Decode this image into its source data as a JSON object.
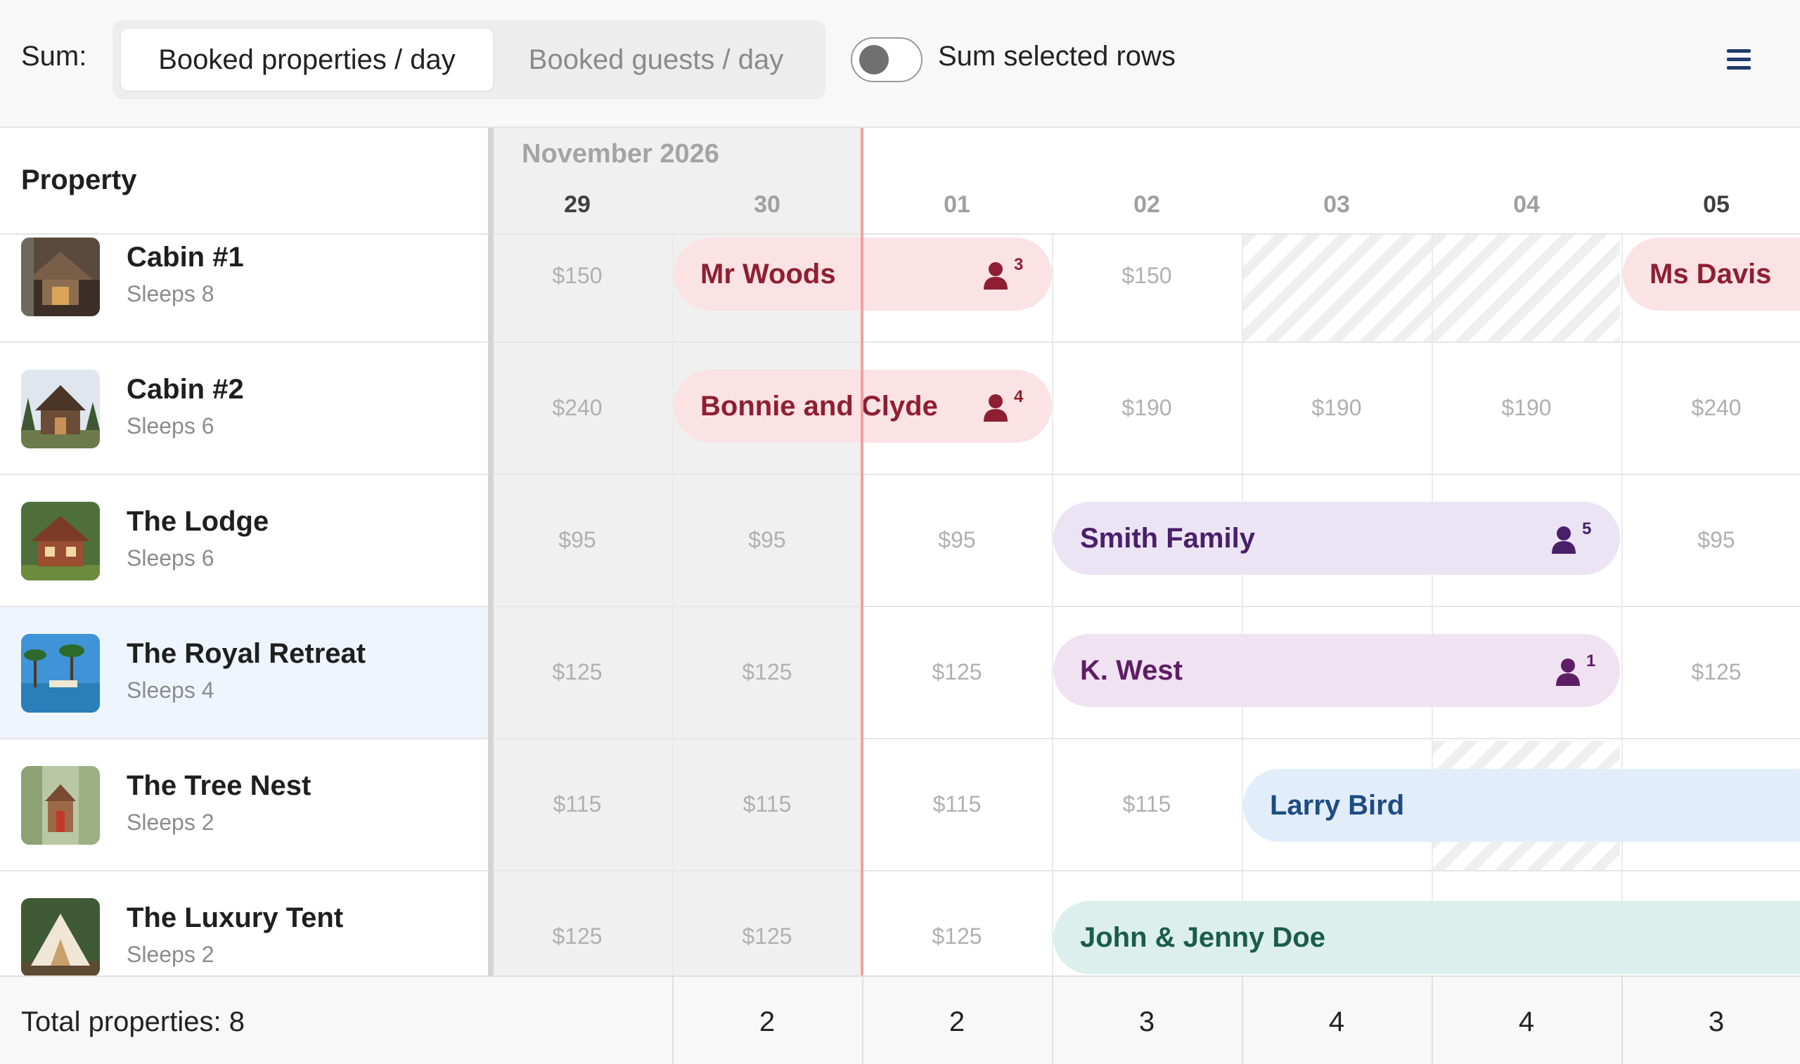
{
  "toolbar": {
    "sum_label": "Sum:",
    "segment_active": "Booked properties / day",
    "segment_inactive": "Booked guests / day",
    "toggle_label": "Sum selected rows",
    "toggle_on": false,
    "menu_icon": "hamburger-menu-icon"
  },
  "header": {
    "property_label": "Property",
    "month": "November 2026",
    "days": [
      "29",
      "30",
      "01",
      "02",
      "03",
      "04",
      "05"
    ]
  },
  "properties": [
    {
      "name": "Cabin #1",
      "sleeps": "Sleeps 8",
      "prices": [
        "$150",
        "",
        "",
        "$150",
        "",
        "",
        ""
      ]
    },
    {
      "name": "Cabin #2",
      "sleeps": "Sleeps 6",
      "prices": [
        "$240",
        "",
        "",
        "$190",
        "$190",
        "$190",
        "$240"
      ]
    },
    {
      "name": "The Lodge",
      "sleeps": "Sleeps 6",
      "prices": [
        "$95",
        "$95",
        "$95",
        "",
        "",
        "",
        "$95"
      ]
    },
    {
      "name": "The Royal Retreat",
      "sleeps": "Sleeps 4",
      "prices": [
        "$125",
        "$125",
        "$125",
        "",
        "",
        "",
        "$125"
      ]
    },
    {
      "name": "The Tree Nest",
      "sleeps": "Sleeps 2",
      "prices": [
        "$115",
        "$115",
        "$115",
        "$115",
        "",
        "",
        ""
      ]
    },
    {
      "name": "The Luxury Tent",
      "sleeps": "Sleeps 2",
      "prices": [
        "$125",
        "$125",
        "$125",
        "",
        "",
        "",
        ""
      ]
    }
  ],
  "bookings": [
    {
      "guest": "Mr Woods",
      "guests": "3",
      "row": 0
    },
    {
      "guest": "Ms Davis",
      "guests": "",
      "row": 0
    },
    {
      "guest": "Bonnie and Clyde",
      "guests": "4",
      "row": 1
    },
    {
      "guest": "Smith Family",
      "guests": "5",
      "row": 2
    },
    {
      "guest": "K. West",
      "guests": "1",
      "row": 3
    },
    {
      "guest": "Larry Bird",
      "guests": "",
      "row": 4
    },
    {
      "guest": "John & Jenny Doe",
      "guests": "",
      "row": 5
    }
  ],
  "footer": {
    "total_label": "Total properties: 8",
    "values": [
      "",
      "2",
      "2",
      "3",
      "4",
      "4",
      "3"
    ]
  },
  "colors": {
    "red_bg": "#fbe2e4",
    "red_text": "#8e1f32",
    "purple_bg": "#ebe4f4",
    "purple_text": "#4a1f6a",
    "violet_bg": "#f0e2f1",
    "violet_text": "#5e1d64",
    "blue_bg": "#e1edfb",
    "blue_text": "#1e4c82",
    "teal_bg": "#dcefec",
    "teal_text": "#1b5c4c",
    "now_line": "#f2a0a0",
    "highlight_row": "#eef5fd"
  }
}
